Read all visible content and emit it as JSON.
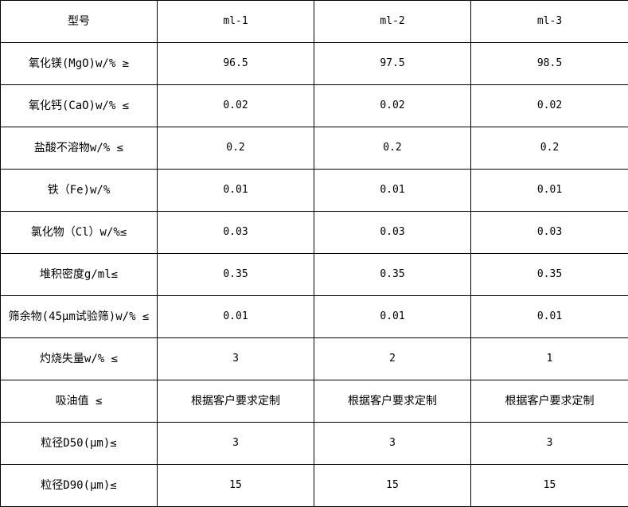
{
  "header": [
    "型号",
    "ml-1",
    "ml-2",
    "ml-3"
  ],
  "rows": [
    {
      "label": "氧化镁(MgO)w/%  ≥",
      "values": [
        "96.5",
        "97.5",
        "98.5"
      ]
    },
    {
      "label": "氧化钙(CaO)w/%  ≤",
      "values": [
        "0.02",
        "0.02",
        "0.02"
      ]
    },
    {
      "label": "盐酸不溶物w/%  ≤",
      "values": [
        "0.2",
        "0.2",
        "0.2"
      ]
    },
    {
      "label": "铁（Fe)w/%",
      "values": [
        "0.01",
        "0.01",
        "0.01"
      ]
    },
    {
      "label": "氯化物（Cl）w/%≤",
      "values": [
        "0.03",
        "0.03",
        "0.03"
      ]
    },
    {
      "label": "堆积密度g/ml≤",
      "values": [
        "0.35",
        "0.35",
        "0.35"
      ]
    },
    {
      "label": "筛余物(45μm试验筛)w/% ≤",
      "values": [
        "0.01",
        "0.01",
        "0.01"
      ]
    },
    {
      "label": "灼烧失量w/%  ≤",
      "values": [
        "3",
        "2",
        "1"
      ]
    },
    {
      "label": "吸油值  ≤",
      "values": [
        "根据客户要求定制",
        "根据客户要求定制",
        "根据客户要求定制"
      ]
    },
    {
      "label": "粒径D50(μm)≤",
      "values": [
        "3",
        "3",
        "3"
      ]
    },
    {
      "label": "粒径D90(μm)≤",
      "values": [
        "15",
        "15",
        "15"
      ]
    }
  ]
}
